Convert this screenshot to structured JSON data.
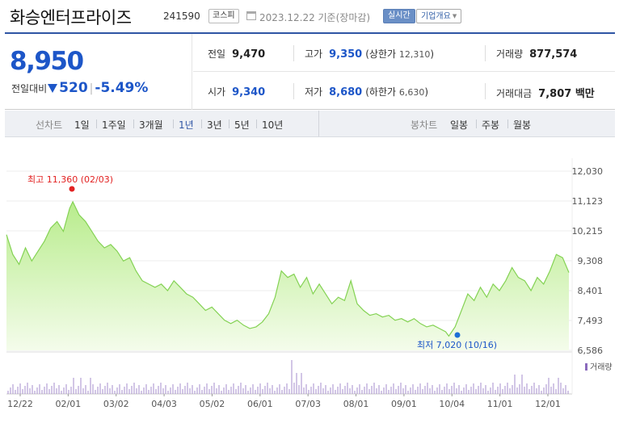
{
  "header": {
    "name": "화승엔터프라이즈",
    "code": "241590",
    "market": "코스피",
    "date": "2023.12.22 기준(장마감)",
    "realtime_button": "실시간",
    "info_button": "기업개요"
  },
  "price": {
    "current": "8,950",
    "change_label": "전일대비",
    "change_value": "520",
    "change_rate": "-5.49%",
    "direction": "down",
    "color": "#1d56c8"
  },
  "stats": {
    "prev_close": {
      "label": "전일",
      "value": "9,470"
    },
    "open": {
      "label": "시가",
      "value": "9,340"
    },
    "high": {
      "label": "고가",
      "value": "9,350",
      "sub_label": "상한가",
      "sub_value": "12,310"
    },
    "low": {
      "label": "저가",
      "value": "8,680",
      "sub_label": "하한가",
      "sub_value": "6,630"
    },
    "volume": {
      "label": "거래량",
      "value": "877,574"
    },
    "amount": {
      "label": "거래대금",
      "value": "7,807 백만"
    }
  },
  "period_bar": {
    "line_label": "선차트",
    "line_items": [
      "1일",
      "1주일",
      "3개월",
      "1년",
      "3년",
      "5년",
      "10년"
    ],
    "active": "1년",
    "candle_label": "봉차트",
    "candle_items": [
      "일봉",
      "주봉",
      "월봉"
    ]
  },
  "chart_data": {
    "type": "area",
    "y_ticks": [
      "12,030",
      "11,123",
      "10,215",
      "9,308",
      "8,401",
      "7,493",
      "6,586"
    ],
    "y_range": [
      6586,
      12030
    ],
    "x_ticks": [
      "12/22",
      "02/01",
      "03/02",
      "04/03",
      "05/02",
      "06/01",
      "07/03",
      "08/01",
      "09/01",
      "10/04",
      "11/01",
      "12/01"
    ],
    "high_annotation": {
      "label": "최고",
      "value": "11,360",
      "date": "(02/03)",
      "y": 11360
    },
    "low_annotation": {
      "label": "최저",
      "value": "7,020",
      "date": "(10/16)",
      "y": 7020
    },
    "volume_legend": "거래량",
    "price_series": [
      {
        "x": 0,
        "y": 10100
      },
      {
        "x": 2,
        "y": 9500
      },
      {
        "x": 4,
        "y": 9200
      },
      {
        "x": 6,
        "y": 9700
      },
      {
        "x": 8,
        "y": 9300
      },
      {
        "x": 10,
        "y": 9600
      },
      {
        "x": 12,
        "y": 9900
      },
      {
        "x": 14,
        "y": 10300
      },
      {
        "x": 16,
        "y": 10500
      },
      {
        "x": 18,
        "y": 10200
      },
      {
        "x": 20,
        "y": 10900
      },
      {
        "x": 21,
        "y": 11100
      },
      {
        "x": 23,
        "y": 10700
      },
      {
        "x": 25,
        "y": 10500
      },
      {
        "x": 27,
        "y": 10200
      },
      {
        "x": 29,
        "y": 9900
      },
      {
        "x": 31,
        "y": 9700
      },
      {
        "x": 33,
        "y": 9800
      },
      {
        "x": 35,
        "y": 9600
      },
      {
        "x": 37,
        "y": 9300
      },
      {
        "x": 39,
        "y": 9400
      },
      {
        "x": 41,
        "y": 9000
      },
      {
        "x": 43,
        "y": 8700
      },
      {
        "x": 45,
        "y": 8600
      },
      {
        "x": 47,
        "y": 8500
      },
      {
        "x": 49,
        "y": 8600
      },
      {
        "x": 51,
        "y": 8400
      },
      {
        "x": 53,
        "y": 8700
      },
      {
        "x": 55,
        "y": 8500
      },
      {
        "x": 57,
        "y": 8300
      },
      {
        "x": 59,
        "y": 8200
      },
      {
        "x": 61,
        "y": 8000
      },
      {
        "x": 63,
        "y": 7800
      },
      {
        "x": 65,
        "y": 7900
      },
      {
        "x": 67,
        "y": 7700
      },
      {
        "x": 69,
        "y": 7500
      },
      {
        "x": 71,
        "y": 7400
      },
      {
        "x": 73,
        "y": 7500
      },
      {
        "x": 75,
        "y": 7350
      },
      {
        "x": 77,
        "y": 7250
      },
      {
        "x": 79,
        "y": 7300
      },
      {
        "x": 81,
        "y": 7450
      },
      {
        "x": 83,
        "y": 7700
      },
      {
        "x": 85,
        "y": 8200
      },
      {
        "x": 87,
        "y": 9000
      },
      {
        "x": 89,
        "y": 8800
      },
      {
        "x": 91,
        "y": 8900
      },
      {
        "x": 93,
        "y": 8500
      },
      {
        "x": 95,
        "y": 8800
      },
      {
        "x": 97,
        "y": 8300
      },
      {
        "x": 99,
        "y": 8600
      },
      {
        "x": 101,
        "y": 8300
      },
      {
        "x": 103,
        "y": 8000
      },
      {
        "x": 105,
        "y": 8200
      },
      {
        "x": 107,
        "y": 8100
      },
      {
        "x": 109,
        "y": 8700
      },
      {
        "x": 111,
        "y": 8000
      },
      {
        "x": 113,
        "y": 7800
      },
      {
        "x": 115,
        "y": 7650
      },
      {
        "x": 117,
        "y": 7700
      },
      {
        "x": 119,
        "y": 7600
      },
      {
        "x": 121,
        "y": 7650
      },
      {
        "x": 123,
        "y": 7500
      },
      {
        "x": 125,
        "y": 7550
      },
      {
        "x": 127,
        "y": 7450
      },
      {
        "x": 129,
        "y": 7550
      },
      {
        "x": 131,
        "y": 7400
      },
      {
        "x": 133,
        "y": 7300
      },
      {
        "x": 135,
        "y": 7350
      },
      {
        "x": 137,
        "y": 7250
      },
      {
        "x": 139,
        "y": 7150
      },
      {
        "x": 140,
        "y": 7020
      },
      {
        "x": 142,
        "y": 7300
      },
      {
        "x": 144,
        "y": 7800
      },
      {
        "x": 146,
        "y": 8300
      },
      {
        "x": 148,
        "y": 8100
      },
      {
        "x": 150,
        "y": 8500
      },
      {
        "x": 152,
        "y": 8200
      },
      {
        "x": 154,
        "y": 8600
      },
      {
        "x": 156,
        "y": 8400
      },
      {
        "x": 158,
        "y": 8700
      },
      {
        "x": 160,
        "y": 9100
      },
      {
        "x": 162,
        "y": 8800
      },
      {
        "x": 164,
        "y": 8700
      },
      {
        "x": 166,
        "y": 8400
      },
      {
        "x": 168,
        "y": 8800
      },
      {
        "x": 170,
        "y": 8600
      },
      {
        "x": 172,
        "y": 9000
      },
      {
        "x": 174,
        "y": 9500
      },
      {
        "x": 176,
        "y": 9400
      },
      {
        "x": 178,
        "y": 8950
      }
    ],
    "x_max": 178
  }
}
